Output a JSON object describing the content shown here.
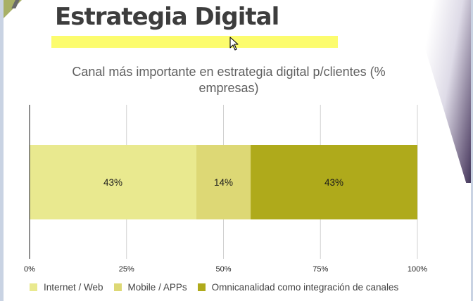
{
  "slide": {
    "title": "Estrategia Digital",
    "accent_color": "#fcfc6e"
  },
  "chart_data": {
    "type": "bar",
    "orientation": "horizontal",
    "stacked": "percent",
    "title": "Canal más importante en estrategia digital p/clientes (% empresas)",
    "categories": [
      ""
    ],
    "series": [
      {
        "name": "Internet / Web",
        "values": [
          43
        ],
        "label": "43%",
        "color": "#e9e98f"
      },
      {
        "name": "Mobile / APPs",
        "values": [
          14
        ],
        "label": "14%",
        "color": "#ddd875"
      },
      {
        "name": "Omnicanalidad como integración de canales",
        "values": [
          43
        ],
        "label": "43%",
        "color": "#afaa1b"
      }
    ],
    "xlim": [
      0,
      100
    ],
    "xticks": [
      "0%",
      "25%",
      "50%",
      "75%",
      "100%"
    ],
    "xtick_values": [
      0,
      25,
      50,
      75,
      100
    ],
    "grid": true,
    "legend_position": "bottom-left",
    "xlabel": "",
    "ylabel": ""
  }
}
